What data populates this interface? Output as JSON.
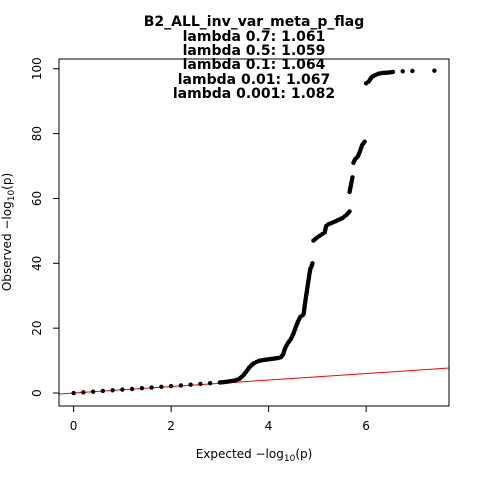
{
  "chart_data": {
    "type": "scatter",
    "title_lines": [
      "B2_ALL_inv_var_meta_p_flag",
      "lambda 0.7: 1.061",
      "lambda 0.5: 1.059",
      "lambda 0.1: 1.064",
      "lambda 0.01: 1.067",
      "lambda 0.001: 1.082"
    ],
    "xlabel": {
      "prefix": "Expected  −log",
      "sub": "10",
      "suffix": "(p)"
    },
    "ylabel": {
      "prefix": "Observed  −log",
      "sub": "10",
      "suffix": "(p)"
    },
    "xlim": [
      -0.3,
      7.7
    ],
    "ylim": [
      -4,
      103
    ],
    "xticks": [
      0,
      2,
      4,
      6
    ],
    "yticks": [
      0,
      20,
      40,
      60,
      80,
      100
    ],
    "reference_line": {
      "color": "#ff0000",
      "x": [
        -0.3,
        7.7
      ],
      "y": [
        -0.3,
        7.7
      ]
    },
    "point_color": "#000000",
    "series": [
      {
        "points": [
          [
            0.0,
            0.0
          ],
          [
            0.2,
            0.2
          ],
          [
            0.4,
            0.42
          ],
          [
            0.6,
            0.63
          ],
          [
            0.8,
            0.85
          ],
          [
            1.0,
            1.05
          ],
          [
            1.2,
            1.27
          ],
          [
            1.4,
            1.48
          ],
          [
            1.6,
            1.7
          ],
          [
            1.8,
            1.92
          ],
          [
            2.0,
            2.13
          ],
          [
            2.2,
            2.35
          ],
          [
            2.4,
            2.57
          ],
          [
            2.6,
            2.79
          ],
          [
            2.8,
            3.02
          ],
          [
            3.0,
            3.25
          ],
          [
            3.1,
            3.4
          ],
          [
            3.2,
            3.6
          ],
          [
            3.3,
            3.85
          ],
          [
            3.35,
            4.1
          ],
          [
            3.4,
            4.4
          ],
          [
            3.45,
            5.0
          ],
          [
            3.5,
            5.8
          ],
          [
            3.55,
            6.8
          ],
          [
            3.6,
            7.8
          ],
          [
            3.65,
            8.6
          ],
          [
            3.7,
            9.2
          ],
          [
            3.75,
            9.6
          ],
          [
            3.8,
            9.9
          ],
          [
            3.9,
            10.2
          ],
          [
            4.0,
            10.4
          ],
          [
            4.1,
            10.6
          ],
          [
            4.2,
            10.8
          ],
          [
            4.25,
            11.0
          ],
          [
            4.3,
            12.0
          ],
          [
            4.33,
            13.5
          ],
          [
            4.36,
            14.5
          ],
          [
            4.4,
            15.5
          ],
          [
            4.45,
            16.5
          ],
          [
            4.5,
            18.0
          ],
          [
            4.55,
            20.0
          ],
          [
            4.6,
            22.0
          ],
          [
            4.65,
            23.5
          ],
          [
            4.7,
            24.0
          ],
          [
            4.72,
            24.5
          ],
          [
            4.74,
            27.0
          ],
          [
            4.76,
            29.0
          ],
          [
            4.78,
            31.0
          ],
          [
            4.8,
            33.0
          ],
          [
            4.82,
            35.0
          ],
          [
            4.84,
            37.0
          ],
          [
            4.86,
            38.5
          ],
          [
            4.88,
            39.0
          ],
          [
            4.9,
            40.0
          ],
          [
            4.92,
            47.0
          ],
          [
            4.96,
            47.5
          ],
          [
            5.0,
            48.0
          ],
          [
            5.05,
            48.5
          ],
          [
            5.1,
            49.0
          ],
          [
            5.15,
            49.5
          ],
          [
            5.18,
            51.5
          ],
          [
            5.22,
            52.0
          ],
          [
            5.3,
            52.5
          ],
          [
            5.38,
            53.0
          ],
          [
            5.45,
            53.5
          ],
          [
            5.52,
            54.0
          ],
          [
            5.56,
            54.5
          ],
          [
            5.6,
            55.0
          ],
          [
            5.63,
            55.5
          ],
          [
            5.66,
            56.0
          ],
          [
            5.66,
            62.0
          ],
          [
            5.68,
            63.5
          ],
          [
            5.7,
            65.0
          ],
          [
            5.72,
            66.5
          ],
          [
            5.74,
            71.0
          ],
          [
            5.77,
            72.0
          ],
          [
            5.8,
            72.5
          ],
          [
            5.83,
            73.0
          ],
          [
            5.86,
            74.0
          ],
          [
            5.92,
            76.5
          ],
          [
            5.97,
            77.5
          ],
          [
            6.0,
            95.5
          ],
          [
            6.05,
            96.0
          ],
          [
            6.12,
            97.5
          ],
          [
            6.18,
            98.0
          ],
          [
            6.26,
            98.5
          ],
          [
            6.34,
            98.7
          ],
          [
            6.45,
            98.8
          ],
          [
            6.55,
            99.0
          ],
          [
            6.75,
            99.2
          ],
          [
            6.95,
            99.3
          ],
          [
            7.4,
            99.4
          ]
        ]
      }
    ]
  }
}
